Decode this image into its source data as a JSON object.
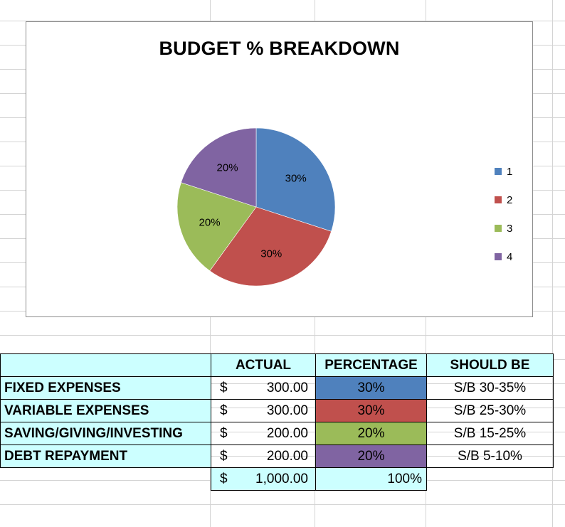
{
  "colors": {
    "series": [
      "#4f81bd",
      "#c0504d",
      "#9bbb59",
      "#8064a2"
    ],
    "table_highlight": "#ccffff"
  },
  "chart_data": {
    "type": "pie",
    "title": "BUDGET % BREAKDOWN",
    "categories": [
      "1",
      "2",
      "3",
      "4"
    ],
    "values": [
      30,
      30,
      20,
      20
    ],
    "data_labels": [
      "30%",
      "30%",
      "20%",
      "20%"
    ],
    "legend_position": "right"
  },
  "table": {
    "headers": [
      "",
      "ACTUAL",
      "PERCENTAGE",
      "SHOULD BE"
    ],
    "rows": [
      {
        "label": "FIXED EXPENSES",
        "currency": "$",
        "amount": "300.00",
        "percentage": "30%",
        "should_be": "S/B 30-35%"
      },
      {
        "label": "VARIABLE EXPENSES",
        "currency": "$",
        "amount": "300.00",
        "percentage": "30%",
        "should_be": "S/B 25-30%"
      },
      {
        "label": "SAVING/GIVING/INVESTING",
        "currency": "$",
        "amount": "200.00",
        "percentage": "20%",
        "should_be": "S/B 15-25%"
      },
      {
        "label": "DEBT REPAYMENT",
        "currency": "$",
        "amount": "200.00",
        "percentage": "20%",
        "should_be": "S/B 5-10%"
      }
    ],
    "total": {
      "currency": "$",
      "amount": "1,000.00",
      "percentage": "100%"
    }
  }
}
